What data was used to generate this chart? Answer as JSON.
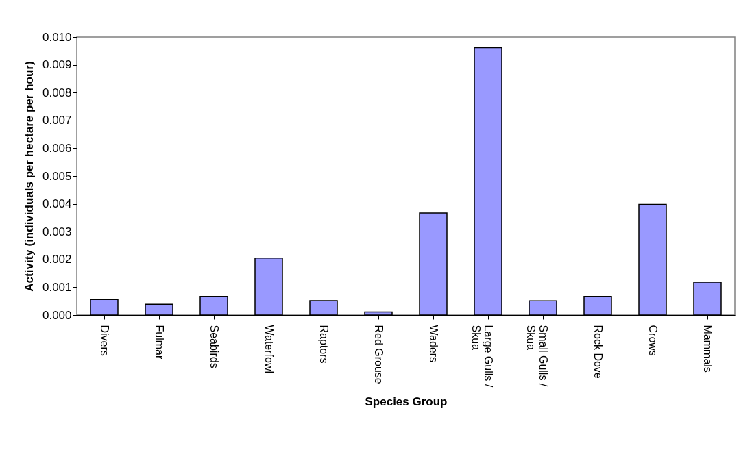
{
  "chart_data": {
    "type": "bar",
    "xlabel": "Species Group",
    "ylabel": "Activity (individuals per hectare per hour)",
    "categories": [
      "Divers",
      "Fulmar",
      "Seabirds",
      "Waterfowl",
      "Raptors",
      "Red Grouse",
      "Waders",
      "Large Gulls / Skua",
      "Small Gulls / Skua",
      "Rock Dove",
      "Crows",
      "Mammals"
    ],
    "values": [
      0.00056,
      0.00039,
      0.00067,
      0.00205,
      0.00052,
      0.00011,
      0.00367,
      0.00962,
      0.00051,
      0.00067,
      0.00398,
      0.00118
    ],
    "color": "#9999ff",
    "ylim": [
      0,
      0.01
    ],
    "yticks": [
      {
        "value": 0,
        "label": "0.000"
      },
      {
        "value": 0.001,
        "label": "0.001"
      },
      {
        "value": 0.002,
        "label": "0.002"
      },
      {
        "value": 0.003,
        "label": "0.003"
      },
      {
        "value": 0.004,
        "label": "0.004"
      },
      {
        "value": 0.005,
        "label": "0.005"
      },
      {
        "value": 0.006,
        "label": "0.006"
      },
      {
        "value": 0.007,
        "label": "0.007"
      },
      {
        "value": 0.008,
        "label": "0.008"
      },
      {
        "value": 0.009,
        "label": "0.009"
      },
      {
        "value": 0.01,
        "label": "0.010"
      }
    ],
    "grid": false
  }
}
